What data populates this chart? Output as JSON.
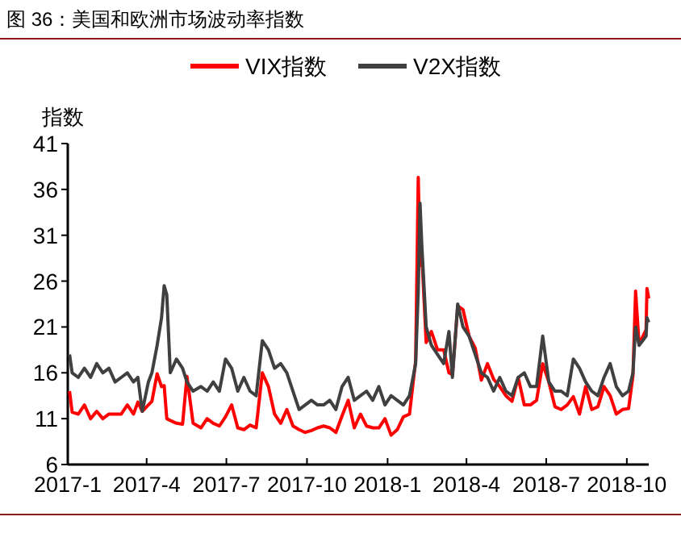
{
  "chart_data": {
    "type": "line",
    "title": "图 36：美国和欧洲市场波动率指数",
    "ylabel": "指数",
    "legend": "top",
    "x": [
      "2017-01-03",
      "2017-01-06",
      "2017-01-13",
      "2017-01-20",
      "2017-01-27",
      "2017-02-03",
      "2017-02-10",
      "2017-02-17",
      "2017-02-24",
      "2017-03-03",
      "2017-03-10",
      "2017-03-17",
      "2017-03-22",
      "2017-03-27",
      "2017-04-03",
      "2017-04-07",
      "2017-04-13",
      "2017-04-18",
      "2017-04-21",
      "2017-04-24",
      "2017-04-28",
      "2017-05-05",
      "2017-05-12",
      "2017-05-17",
      "2017-05-24",
      "2017-06-02",
      "2017-06-09",
      "2017-06-16",
      "2017-06-23",
      "2017-06-30",
      "2017-07-07",
      "2017-07-14",
      "2017-07-21",
      "2017-07-28",
      "2017-08-04",
      "2017-08-11",
      "2017-08-18",
      "2017-08-25",
      "2017-09-01",
      "2017-09-08",
      "2017-09-15",
      "2017-09-22",
      "2017-09-29",
      "2017-10-06",
      "2017-10-13",
      "2017-10-20",
      "2017-10-27",
      "2017-11-03",
      "2017-11-10",
      "2017-11-17",
      "2017-11-24",
      "2017-12-01",
      "2017-12-08",
      "2017-12-15",
      "2017-12-22",
      "2017-12-29",
      "2018-01-05",
      "2018-01-12",
      "2018-01-19",
      "2018-01-26",
      "2018-02-02",
      "2018-02-05",
      "2018-02-07",
      "2018-02-09",
      "2018-02-14",
      "2018-02-20",
      "2018-02-27",
      "2018-03-06",
      "2018-03-12",
      "2018-03-16",
      "2018-03-22",
      "2018-03-28",
      "2018-04-04",
      "2018-04-11",
      "2018-04-18",
      "2018-04-25",
      "2018-05-02",
      "2018-05-09",
      "2018-05-16",
      "2018-05-23",
      "2018-05-30",
      "2018-06-06",
      "2018-06-13",
      "2018-06-20",
      "2018-06-27",
      "2018-07-04",
      "2018-07-11",
      "2018-07-18",
      "2018-07-25",
      "2018-08-01",
      "2018-08-08",
      "2018-08-15",
      "2018-08-22",
      "2018-08-29",
      "2018-09-05",
      "2018-09-12",
      "2018-09-19",
      "2018-09-26",
      "2018-10-03",
      "2018-10-08",
      "2018-10-11",
      "2018-10-15",
      "2018-10-19",
      "2018-10-23",
      "2018-10-24",
      "2018-10-26"
    ],
    "xlim": [
      "2017-01-01",
      "2018-10-26"
    ],
    "xticks": [
      {
        "value": "2017-01-01",
        "label": "2017-1"
      },
      {
        "value": "2017-04-01",
        "label": "2017-4"
      },
      {
        "value": "2017-07-01",
        "label": "2017-7"
      },
      {
        "value": "2017-10-01",
        "label": "2017-10"
      },
      {
        "value": "2018-01-01",
        "label": "2018-1"
      },
      {
        "value": "2018-04-01",
        "label": "2018-4"
      },
      {
        "value": "2018-07-01",
        "label": "2018-7"
      },
      {
        "value": "2018-10-01",
        "label": "2018-10"
      }
    ],
    "ylim": [
      6,
      41
    ],
    "yticks": [
      6,
      11,
      16,
      21,
      26,
      31,
      36,
      41
    ],
    "series": [
      {
        "name": "VIX指数",
        "color": "#ff0000",
        "values": [
          14,
          11.7,
          11.5,
          12.5,
          11,
          11.8,
          11,
          11.5,
          11.5,
          11.5,
          12.5,
          11.5,
          12.8,
          11.8,
          12.5,
          12.9,
          15.9,
          14.5,
          14.6,
          11,
          10.8,
          10.5,
          10.4,
          15.6,
          10.5,
          10,
          11,
          10.5,
          10.2,
          11.2,
          12.5,
          10,
          9.8,
          10.3,
          10,
          16,
          14.5,
          11.5,
          10.5,
          12,
          10.2,
          9.8,
          9.5,
          9.7,
          10,
          10.2,
          10,
          9.5,
          11.3,
          13,
          10,
          11.5,
          10.2,
          10,
          10,
          11,
          9.2,
          9.8,
          11.2,
          11.5,
          17.3,
          37.3,
          27.7,
          29,
          19.3,
          20.5,
          18.5,
          18.5,
          16,
          15.8,
          23.3,
          22.9,
          20,
          18.7,
          15.2,
          17,
          15.3,
          14.5,
          13.5,
          12.9,
          15.5,
          12.5,
          12.5,
          13,
          17,
          15,
          12.3,
          12,
          12.5,
          13.4,
          11.5,
          14.5,
          12,
          12.3,
          14.5,
          13.5,
          11.5,
          12,
          12.1,
          15.7,
          24.9,
          19.1,
          19.9,
          20.7,
          25.2,
          24.1
        ]
      },
      {
        "name": "V2X指数",
        "color": "#404040",
        "values": [
          18,
          16,
          15.5,
          16.5,
          15.5,
          17,
          16,
          16.5,
          15,
          15.5,
          16,
          15,
          15.5,
          11.8,
          15,
          16,
          19,
          22,
          25.5,
          24.5,
          16,
          17.5,
          16.5,
          15,
          14,
          14.5,
          14,
          15,
          14,
          17.5,
          16.5,
          14,
          15.5,
          14,
          13.5,
          19.5,
          18.5,
          16.5,
          17,
          16,
          14,
          12,
          12.5,
          13,
          12.5,
          12.5,
          13,
          12,
          14.5,
          15.5,
          13,
          13.5,
          14,
          13,
          14.5,
          12.5,
          13.5,
          13,
          12.5,
          13.5,
          17,
          25,
          34.5,
          30,
          21,
          19,
          18,
          17,
          20.5,
          15.5,
          23.5,
          21,
          20,
          18,
          16,
          15.5,
          14,
          15.5,
          14,
          13.5,
          15.5,
          16,
          14.5,
          14.5,
          20,
          15,
          14,
          14,
          13.5,
          17.5,
          16.5,
          15,
          14,
          13.5,
          15.5,
          17,
          14.5,
          13.5,
          14,
          16,
          21,
          19,
          19.5,
          20,
          22,
          21.5
        ]
      }
    ]
  }
}
